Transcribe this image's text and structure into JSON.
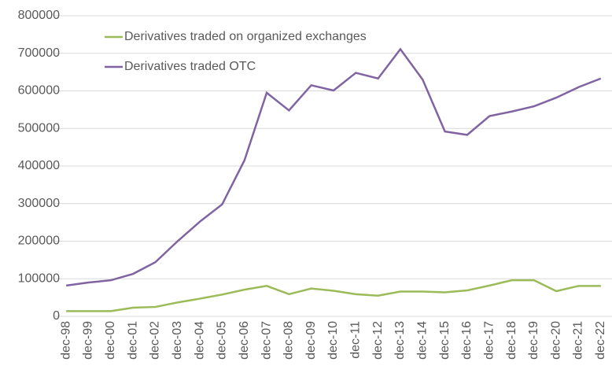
{
  "chart_data": {
    "type": "line",
    "categories": [
      "dec-98",
      "dec-99",
      "dec-00",
      "dec-01",
      "dec-02",
      "dec-03",
      "dec-04",
      "dec-05",
      "dec-06",
      "dec-07",
      "dec-08",
      "dec-09",
      "dec-10",
      "dec-11",
      "dec-12",
      "dec-13",
      "dec-14",
      "dec-15",
      "dec-16",
      "dec-17",
      "dec-18",
      "dec-19",
      "dec-20",
      "dec-21",
      "dec-22"
    ],
    "series": [
      {
        "name": "Derivatives traded on organized exchanges",
        "color": "#9bbb59",
        "values": [
          14000,
          14000,
          14000,
          23000,
          25000,
          37000,
          47000,
          58000,
          71000,
          81000,
          59000,
          74000,
          68000,
          59000,
          55000,
          66000,
          66000,
          64000,
          69000,
          82000,
          96000,
          96000,
          67000,
          81000,
          81000
        ]
      },
      {
        "name": "Derivatives traded OTC",
        "color": "#8064a2",
        "values": [
          82000,
          90000,
          96000,
          113000,
          144000,
          200000,
          252000,
          298000,
          415000,
          595000,
          548000,
          615000,
          601000,
          648000,
          633000,
          711000,
          630000,
          492000,
          483000,
          533000,
          545000,
          559000,
          582000,
          610000,
          633000
        ]
      }
    ],
    "ylim": [
      0,
      800000
    ],
    "yticks": [
      0,
      100000,
      200000,
      300000,
      400000,
      500000,
      600000,
      700000,
      800000
    ],
    "grid": true
  }
}
